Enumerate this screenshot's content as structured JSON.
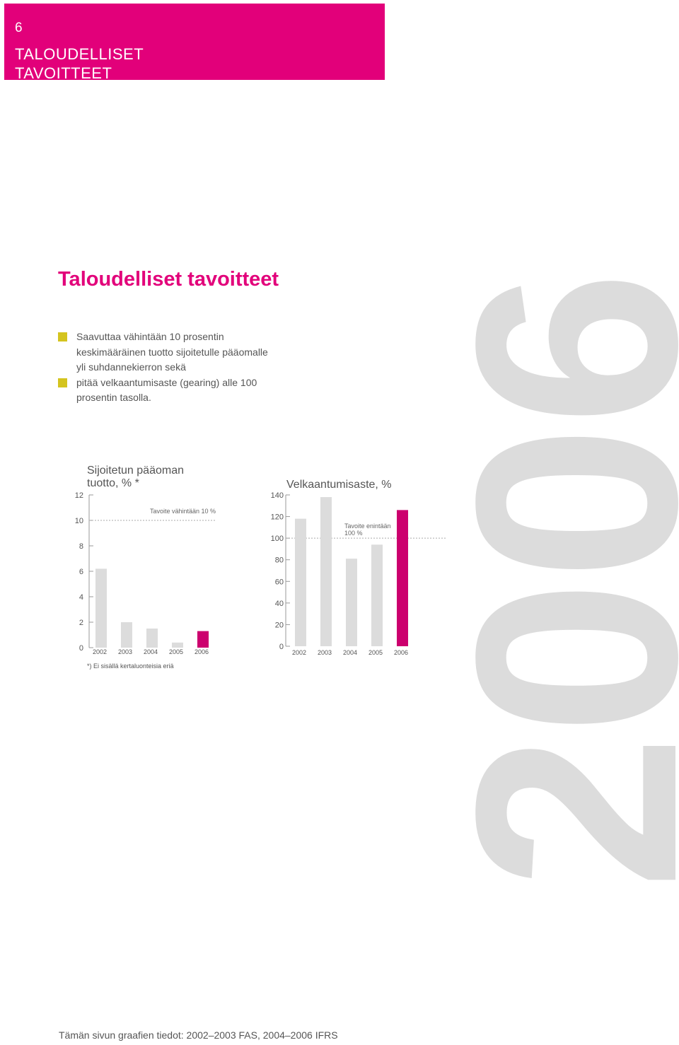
{
  "banner": {
    "page_number": "6",
    "title_line1": "TALOUDELLISET",
    "title_line2": "TAVOITTEET",
    "color": "#e2007a"
  },
  "heading": "Taloudelliset tavoitteet",
  "goals": [
    {
      "text": "Saavuttaa vähintään 10 prosentin keskimääräinen tuotto sijoitetulle pääomalle yli suhdannekierron sekä"
    },
    {
      "text": "pitää velkaantumisaste (gearing) alle 100 prosentin tasolla."
    }
  ],
  "bullet_color": "#d4c41f",
  "watermark_year": "2006",
  "footer": "Tämän sivun graafien tiedot: 2002–2003 FAS, 2004–2006 IFRS",
  "chart_data": [
    {
      "type": "bar",
      "title": "Sijoitetun pääoman tuotto, % *",
      "categories": [
        "2002",
        "2003",
        "2004",
        "2005",
        "2006"
      ],
      "values": [
        6.2,
        2.0,
        1.5,
        0.4,
        1.3
      ],
      "highlight_index": 4,
      "yticks": [
        0,
        2,
        4,
        6,
        8,
        10,
        12
      ],
      "ylim": [
        0,
        12
      ],
      "target": {
        "value": 10,
        "label": "Tavoite vähintään 10 %"
      },
      "footnote": "*) Ei sisällä kertaluonteisia eriä",
      "bar_color": "#dcdcdc",
      "highlight_color": "#cc006e"
    },
    {
      "type": "bar",
      "title": "Velkaantumisaste, %",
      "categories": [
        "2002",
        "2003",
        "2004",
        "2005",
        "2006"
      ],
      "values": [
        118,
        138,
        81,
        94,
        126
      ],
      "highlight_index": 4,
      "yticks": [
        0,
        20,
        40,
        60,
        80,
        100,
        120,
        140
      ],
      "ylim": [
        0,
        140
      ],
      "target": {
        "value": 100,
        "label_line1": "Tavoite enintään",
        "label_line2": "100 %"
      },
      "bar_color": "#dcdcdc",
      "highlight_color": "#cc006e"
    }
  ]
}
